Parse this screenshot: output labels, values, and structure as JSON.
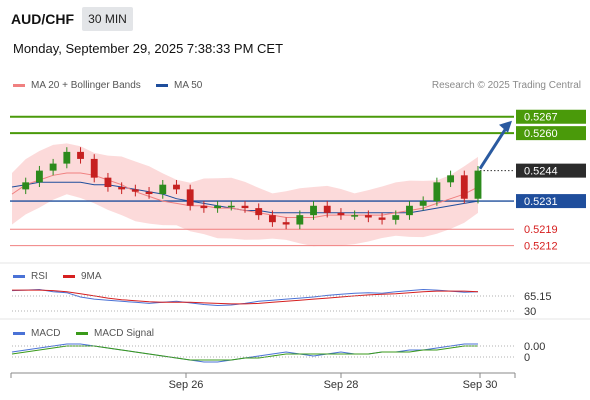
{
  "header": {
    "symbol": "AUD/CHF",
    "timeframe": "30 MIN",
    "datetime": "Monday, September 29, 2025 7:38:33 PM CET"
  },
  "legend_main": [
    {
      "label": "MA 20 + Bollinger Bands",
      "color": "#f08080"
    },
    {
      "label": "MA 50",
      "color": "#1f4e9c"
    }
  ],
  "copyright": "Research © 2025 Trading Central",
  "legend_rsi": [
    {
      "label": "RSI",
      "color": "#4a72d6"
    },
    {
      "label": "9MA",
      "color": "#d62020"
    }
  ],
  "legend_macd": [
    {
      "label": "MACD",
      "color": "#4a72d6"
    },
    {
      "label": "MACD Signal",
      "color": "#3a9a1a"
    }
  ],
  "colors": {
    "green_level": "#4a9a0a",
    "blue_level": "#1f4e9c",
    "red_level": "#f08080",
    "arrow": "#2a5aa0",
    "candle_up": "#2c8a1c",
    "candle_down": "#c62020",
    "band_fill": "#fbd3d3"
  },
  "chart_data": [
    {
      "type": "line",
      "title": "AUD/CHF",
      "x_ticks": [
        "Sep 26",
        "Sep 28",
        "Sep 30"
      ],
      "price_levels": [
        {
          "value": "0.5267",
          "kind": "resistance"
        },
        {
          "value": "0.5260",
          "kind": "resistance"
        },
        {
          "value": "0.5244",
          "kind": "last"
        },
        {
          "value": "0.5231",
          "kind": "pivot"
        },
        {
          "value": "0.5219",
          "kind": "support"
        },
        {
          "value": "0.5212",
          "kind": "support"
        }
      ],
      "ylim": [
        0.5205,
        0.5275
      ],
      "series": [
        {
          "name": "price",
          "values": [
            0.5236,
            0.5239,
            0.5244,
            0.5247,
            0.5252,
            0.5249,
            0.5241,
            0.5237,
            0.5236,
            0.5235,
            0.5234,
            0.5238,
            0.5236,
            0.5229,
            0.5228,
            0.5229,
            0.5229,
            0.5228,
            0.5225,
            0.5222,
            0.5221,
            0.5225,
            0.5229,
            0.5226,
            0.5225,
            0.5225,
            0.5224,
            0.5223,
            0.5225,
            0.5229,
            0.5231,
            0.5239,
            0.5242,
            0.5232,
            0.5244
          ]
        },
        {
          "name": "MA 20",
          "values": [
            0.5234,
            0.5238,
            0.524,
            0.5242,
            0.5243,
            0.5243,
            0.5242,
            0.524,
            0.5238,
            0.5235,
            0.5233,
            0.5231,
            0.523,
            0.5229,
            0.5229,
            0.5228,
            0.5228,
            0.5227,
            0.5226,
            0.5225,
            0.5224,
            0.5224,
            0.5224,
            0.5225,
            0.5225,
            0.5225,
            0.5225,
            0.5225,
            0.5226,
            0.5227,
            0.5228,
            0.523,
            0.5232,
            0.5234,
            0.5237
          ]
        },
        {
          "name": "MA 50",
          "values": [
            0.5237,
            0.5238,
            0.5239,
            0.5239,
            0.5239,
            0.5239,
            0.5238,
            0.5238,
            0.5237,
            0.5236,
            0.5235,
            0.5234,
            0.5232,
            0.5231,
            0.523,
            0.5229,
            0.5228,
            0.5227,
            0.5227,
            0.5226,
            0.5226,
            0.5226,
            0.5226,
            0.5226,
            0.5226,
            0.5226,
            0.5226,
            0.5226,
            0.5226,
            0.5226,
            0.5227,
            0.5228,
            0.5229,
            0.523,
            0.5231
          ]
        }
      ]
    },
    {
      "type": "line",
      "title": "RSI",
      "ticks": [
        "65.15",
        "30"
      ],
      "ylim": [
        20,
        80
      ],
      "series": [
        {
          "name": "RSI",
          "values": [
            62,
            63,
            64,
            60,
            58,
            50,
            46,
            44,
            42,
            40,
            38,
            40,
            42,
            39,
            36,
            34,
            35,
            38,
            42,
            44,
            46,
            48,
            50,
            53,
            55,
            57,
            58,
            57,
            60,
            62,
            64,
            63,
            61,
            59,
            60
          ]
        },
        {
          "name": "9MA",
          "values": [
            63,
            63,
            63,
            62,
            60,
            56,
            52,
            48,
            45,
            43,
            41,
            40,
            40,
            40,
            39,
            38,
            37,
            37,
            38,
            40,
            42,
            44,
            46,
            48,
            50,
            52,
            54,
            55,
            56,
            58,
            60,
            61,
            61,
            61,
            60
          ]
        }
      ]
    },
    {
      "type": "line",
      "title": "MACD",
      "ticks": [
        "0.00",
        "0"
      ],
      "ylim": [
        -0.0008,
        0.0008
      ],
      "series": [
        {
          "name": "MACD",
          "values": [
            0.0001,
            0.0002,
            0.0003,
            0.0004,
            0.0005,
            0.0005,
            0.0004,
            0.0003,
            0.0002,
            0.0001,
            0.0,
            -0.0001,
            -0.0002,
            -0.0003,
            -0.0004,
            -0.0004,
            -0.0003,
            -0.0002,
            -0.0001,
            0.0,
            0.0001,
            0.0,
            -0.0001,
            0.0,
            0.0001,
            0.0,
            0.0,
            0.0001,
            0.0001,
            0.0002,
            0.0002,
            0.0003,
            0.0004,
            0.0005,
            0.0005
          ]
        },
        {
          "name": "MACD Signal",
          "values": [
            0.0,
            0.0001,
            0.0002,
            0.0003,
            0.0004,
            0.0004,
            0.0004,
            0.0003,
            0.0002,
            0.0001,
            0.0,
            -0.0001,
            -0.0002,
            -0.0003,
            -0.0003,
            -0.0003,
            -0.0003,
            -0.0002,
            -0.0002,
            -0.0001,
            0.0,
            0.0,
            0.0,
            0.0,
            0.0,
            0.0,
            0.0,
            0.0001,
            0.0001,
            0.0001,
            0.0002,
            0.0002,
            0.0003,
            0.0004,
            0.0004
          ]
        }
      ]
    }
  ]
}
